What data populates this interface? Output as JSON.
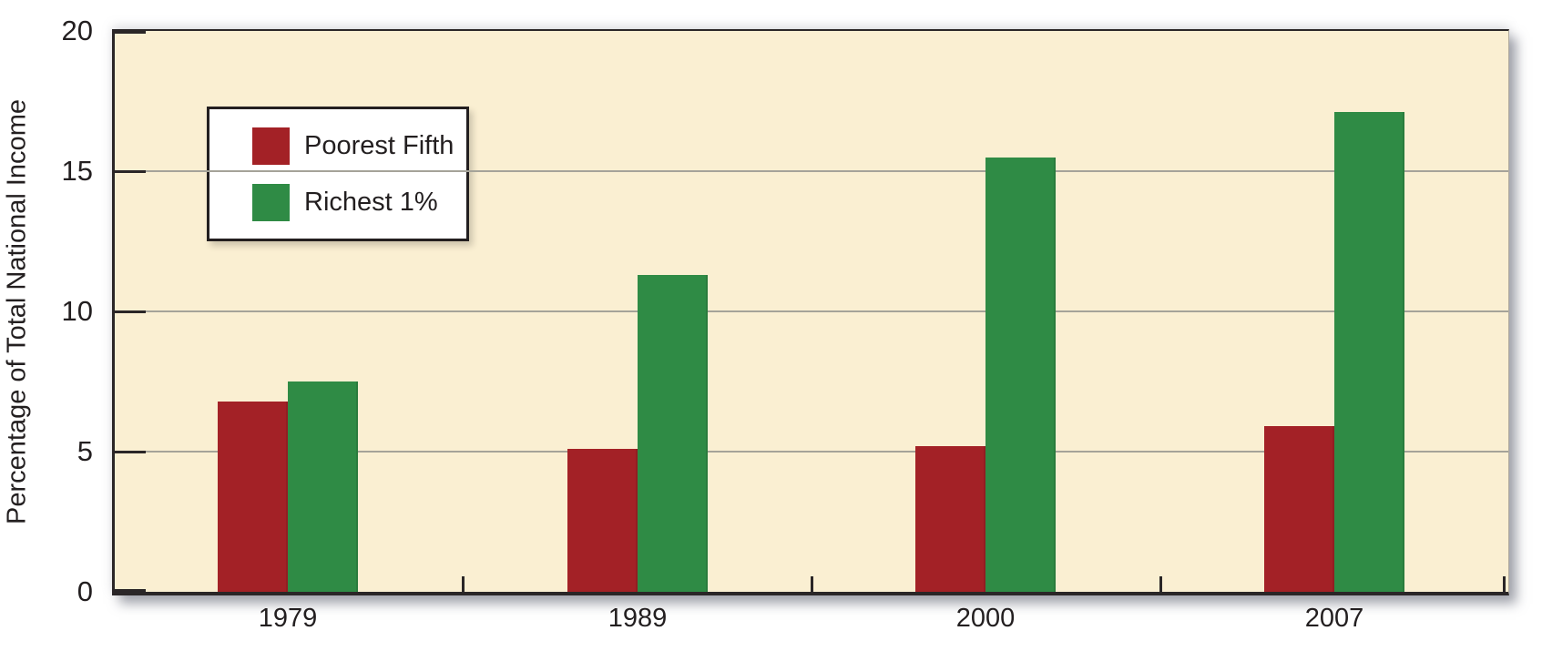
{
  "chart_data": {
    "type": "bar",
    "title": "",
    "ylabel": "Percentage of Total National Income",
    "categories": [
      "1979",
      "1989",
      "2000",
      "2007"
    ],
    "series": [
      {
        "name": "Poorest Fifth",
        "color": "#a32126",
        "values": [
          6.8,
          5.1,
          5.2,
          5.9
        ]
      },
      {
        "name": "Richest 1%",
        "color": "#2f8b45",
        "values": [
          7.5,
          11.3,
          15.5,
          17.1
        ]
      }
    ],
    "ylim": [
      0,
      20
    ],
    "yticks": [
      0,
      5,
      10,
      15,
      20
    ],
    "gridlines_at": [
      5,
      10,
      15
    ],
    "legend_position": "top-left",
    "grid": "horizontal",
    "colors": {
      "plot_background": "#faefd2",
      "gridline": "#a5a399",
      "axis": "#2a2627",
      "text": "#231f20",
      "page_background": "#ffffff"
    }
  }
}
